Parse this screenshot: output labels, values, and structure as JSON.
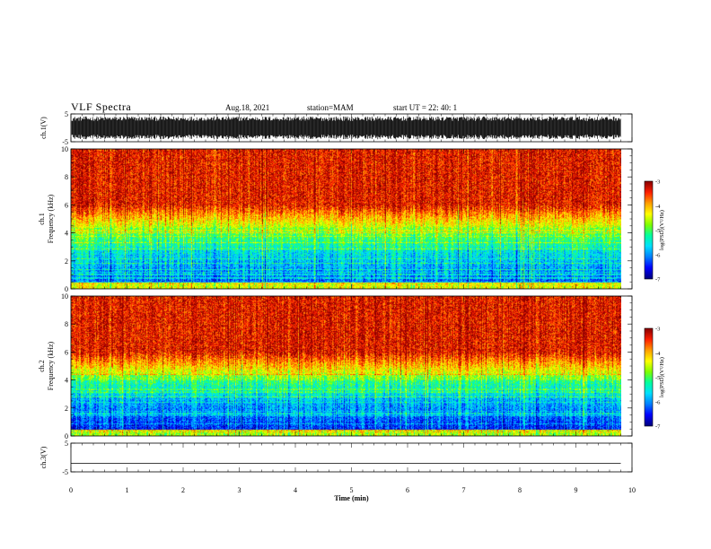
{
  "header": {
    "title": "VLF Spectra",
    "date": "Aug.18, 2021",
    "station": "station=MAM",
    "start": "start UT =  22: 40: 1"
  },
  "colors": {
    "spectrogram_scale": [
      "#00007f",
      "#0000ff",
      "#007fff",
      "#00dfff",
      "#00ff9f",
      "#7fff00",
      "#ffff00",
      "#ff9f00",
      "#ff2000",
      "#8b0000"
    ]
  },
  "chart_data": [
    {
      "type": "line",
      "name": "waveform-ch1",
      "ylabel": "ch.1(V)",
      "ylim": [
        -5,
        5
      ],
      "yticks": [
        "5",
        "-5"
      ],
      "xlim": [
        0,
        10
      ],
      "description_series": "dense waveform filling roughly -4 to 4 V from 0 to ~9.8 min"
    },
    {
      "type": "heatmap",
      "name": "spectrogram-ch1",
      "ylabel_line1": "ch.1",
      "ylabel_line2": "Frequency (kHz)",
      "ylim": [
        0,
        10
      ],
      "yticks": [
        "0",
        "2",
        "4",
        "6",
        "8",
        "10"
      ],
      "xlim": [
        0,
        10
      ],
      "data_extent_min": 9.8,
      "colorbar": {
        "label": "log(PSD)(V²/Hz)",
        "range": [
          -7,
          -3
        ],
        "ticks": [
          "-3",
          "-4",
          "-5",
          "-6",
          "-7"
        ]
      }
    },
    {
      "type": "heatmap",
      "name": "spectrogram-ch2",
      "ylabel_line1": "ch.2",
      "ylabel_line2": "Frequency (kHz)",
      "ylim": [
        0,
        10
      ],
      "yticks": [
        "0",
        "2",
        "4",
        "6",
        "8",
        "10"
      ],
      "xlim": [
        0,
        10
      ],
      "data_extent_min": 9.8,
      "colorbar": {
        "label": "log(PSD)(V²/Hz)",
        "range": [
          -7,
          -3
        ],
        "ticks": [
          "-3",
          "-4",
          "-5",
          "-6",
          "-7"
        ]
      }
    },
    {
      "type": "line",
      "name": "waveform-ch3",
      "ylabel": "ch.3(V)",
      "ylim": [
        -5,
        5
      ],
      "yticks": [
        "5",
        "-5"
      ],
      "xlim": [
        0,
        10
      ],
      "x": [
        0,
        9.8
      ],
      "y": [
        -2,
        -2
      ]
    }
  ],
  "xaxis": {
    "label": "Time (min)",
    "ticks": [
      "0",
      "1",
      "2",
      "3",
      "4",
      "5",
      "6",
      "7",
      "8",
      "9",
      "10"
    ]
  }
}
